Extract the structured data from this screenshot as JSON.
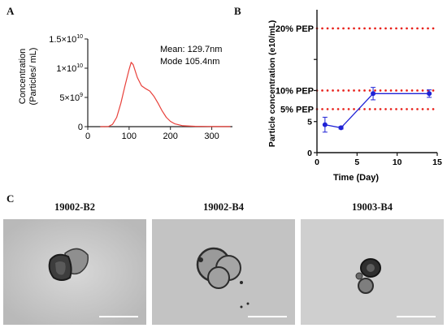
{
  "panels": {
    "a": "A",
    "b": "B",
    "c": "C"
  },
  "chart_data": [
    {
      "type": "line",
      "ylabel_lines": [
        "Concentration",
        "(Particles/ mL)"
      ],
      "xlabel": "",
      "xlim": [
        0,
        350
      ],
      "ylim": [
        0,
        15000000000.0
      ],
      "xticks": [
        0,
        100,
        200,
        300
      ],
      "xtick_labels": [
        "0",
        "100",
        "200",
        "300"
      ],
      "yticks": [
        0,
        5000000000.0,
        10000000000.0,
        15000000000.0
      ],
      "ytick_labels": [
        {
          "base": "0",
          "exp": ""
        },
        {
          "base": "5×10",
          "exp": "9"
        },
        {
          "base": "1×10",
          "exp": "10"
        },
        {
          "base": "1.5×10",
          "exp": "10"
        }
      ],
      "annotations": [
        "Mean: 129.7nm",
        "Mode 105.4nm"
      ],
      "series": [
        {
          "color": "#e8403a",
          "x": [
            30,
            50,
            60,
            70,
            80,
            90,
            100,
            105,
            110,
            120,
            130,
            140,
            150,
            160,
            170,
            180,
            190,
            200,
            210,
            230,
            260,
            300,
            345
          ],
          "y": [
            0,
            20000000.0,
            400000000.0,
            1600000000.0,
            4000000000.0,
            7000000000.0,
            9800000000.0,
            11000000000.0,
            10600000000.0,
            8400000000.0,
            7000000000.0,
            6500000000.0,
            6100000000.0,
            5200000000.0,
            4000000000.0,
            2700000000.0,
            1600000000.0,
            900000000.0,
            500000000.0,
            150000000.0,
            50000000.0,
            20000000.0,
            10000000.0
          ]
        }
      ]
    },
    {
      "type": "line",
      "ylabel": "Particle concentration (e10/mL)",
      "xlabel": "Time (Day)",
      "xlim": [
        0,
        15
      ],
      "ylim": [
        0,
        23
      ],
      "xticks": [
        0,
        5,
        10,
        15
      ],
      "yticks": [
        0,
        5,
        10,
        15
      ],
      "reference_lines": [
        {
          "label": "20% PEP",
          "y": 20
        },
        {
          "label": "10% PEP",
          "y": 10
        },
        {
          "label": "5% PEP",
          "y": 7
        }
      ],
      "reference_color": "#e8201a",
      "series": [
        {
          "color": "#1f22d6",
          "x": [
            1,
            3,
            7,
            14
          ],
          "y": [
            4.5,
            4.0,
            9.5,
            9.5
          ],
          "err": [
            1.2,
            0.2,
            1.0,
            0.6
          ]
        }
      ]
    }
  ],
  "tem_images": [
    {
      "title": "19002-B2"
    },
    {
      "title": "19002-B4"
    },
    {
      "title": "19003-B4"
    }
  ]
}
